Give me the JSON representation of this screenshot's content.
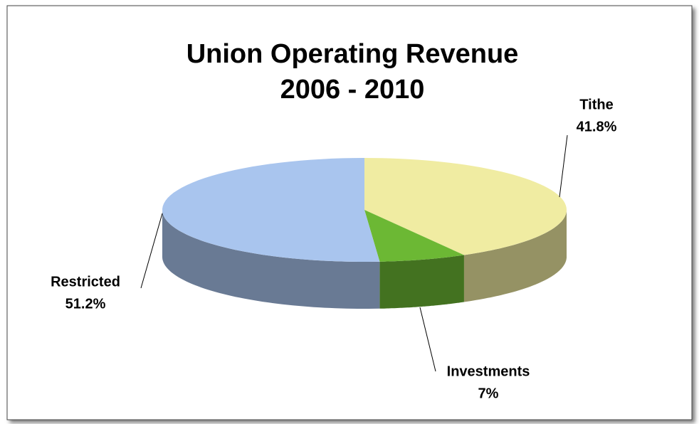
{
  "chart_data": {
    "type": "pie3d",
    "title": [
      "Union Operating Revenue",
      "2006 - 2010"
    ],
    "categories": [
      "Tithe",
      "Investments",
      "Restricted"
    ],
    "values": [
      41.8,
      7,
      51.2
    ],
    "value_labels": [
      "41.8%",
      "7%",
      "51.2%"
    ],
    "colors": [
      "#f0eca2",
      "#6cb834",
      "#a9c5ee"
    ]
  }
}
